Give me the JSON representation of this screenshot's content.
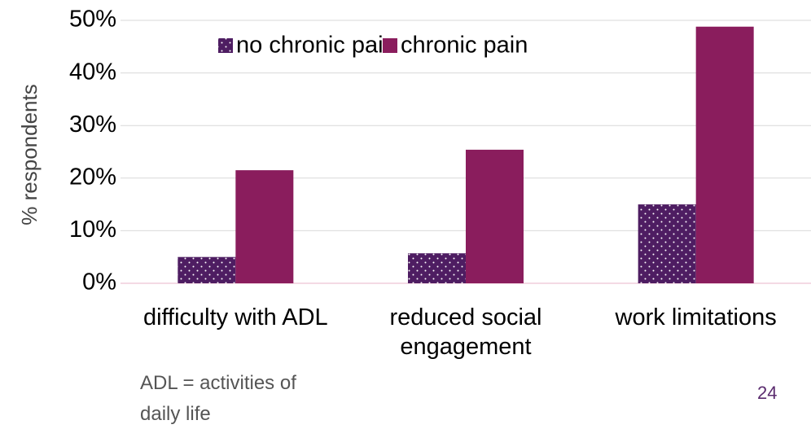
{
  "chart_data": {
    "type": "bar",
    "categories": [
      "difficulty with ADL",
      "reduced social engagement",
      "work limitations"
    ],
    "series": [
      {
        "name": "no chronic pain",
        "color": "#4e1d62",
        "pattern": "dots",
        "values": [
          5,
          5.7,
          15
        ]
      },
      {
        "name": "chronic pain",
        "color": "#8a1d5d",
        "values": [
          21.5,
          25.4,
          48.8
        ]
      }
    ],
    "ylabel": "% respondents",
    "ylim": [
      0,
      50
    ],
    "yticks": [
      {
        "value": 0,
        "label": "0%"
      },
      {
        "value": 10,
        "label": "10%"
      },
      {
        "value": 20,
        "label": "20%"
      },
      {
        "value": 30,
        "label": "30%"
      },
      {
        "value": 40,
        "label": "40%"
      },
      {
        "value": 50,
        "label": "50%"
      }
    ],
    "grid": true,
    "legend": "top",
    "footnote": "ADL = activities of daily life",
    "page_number": 24
  }
}
